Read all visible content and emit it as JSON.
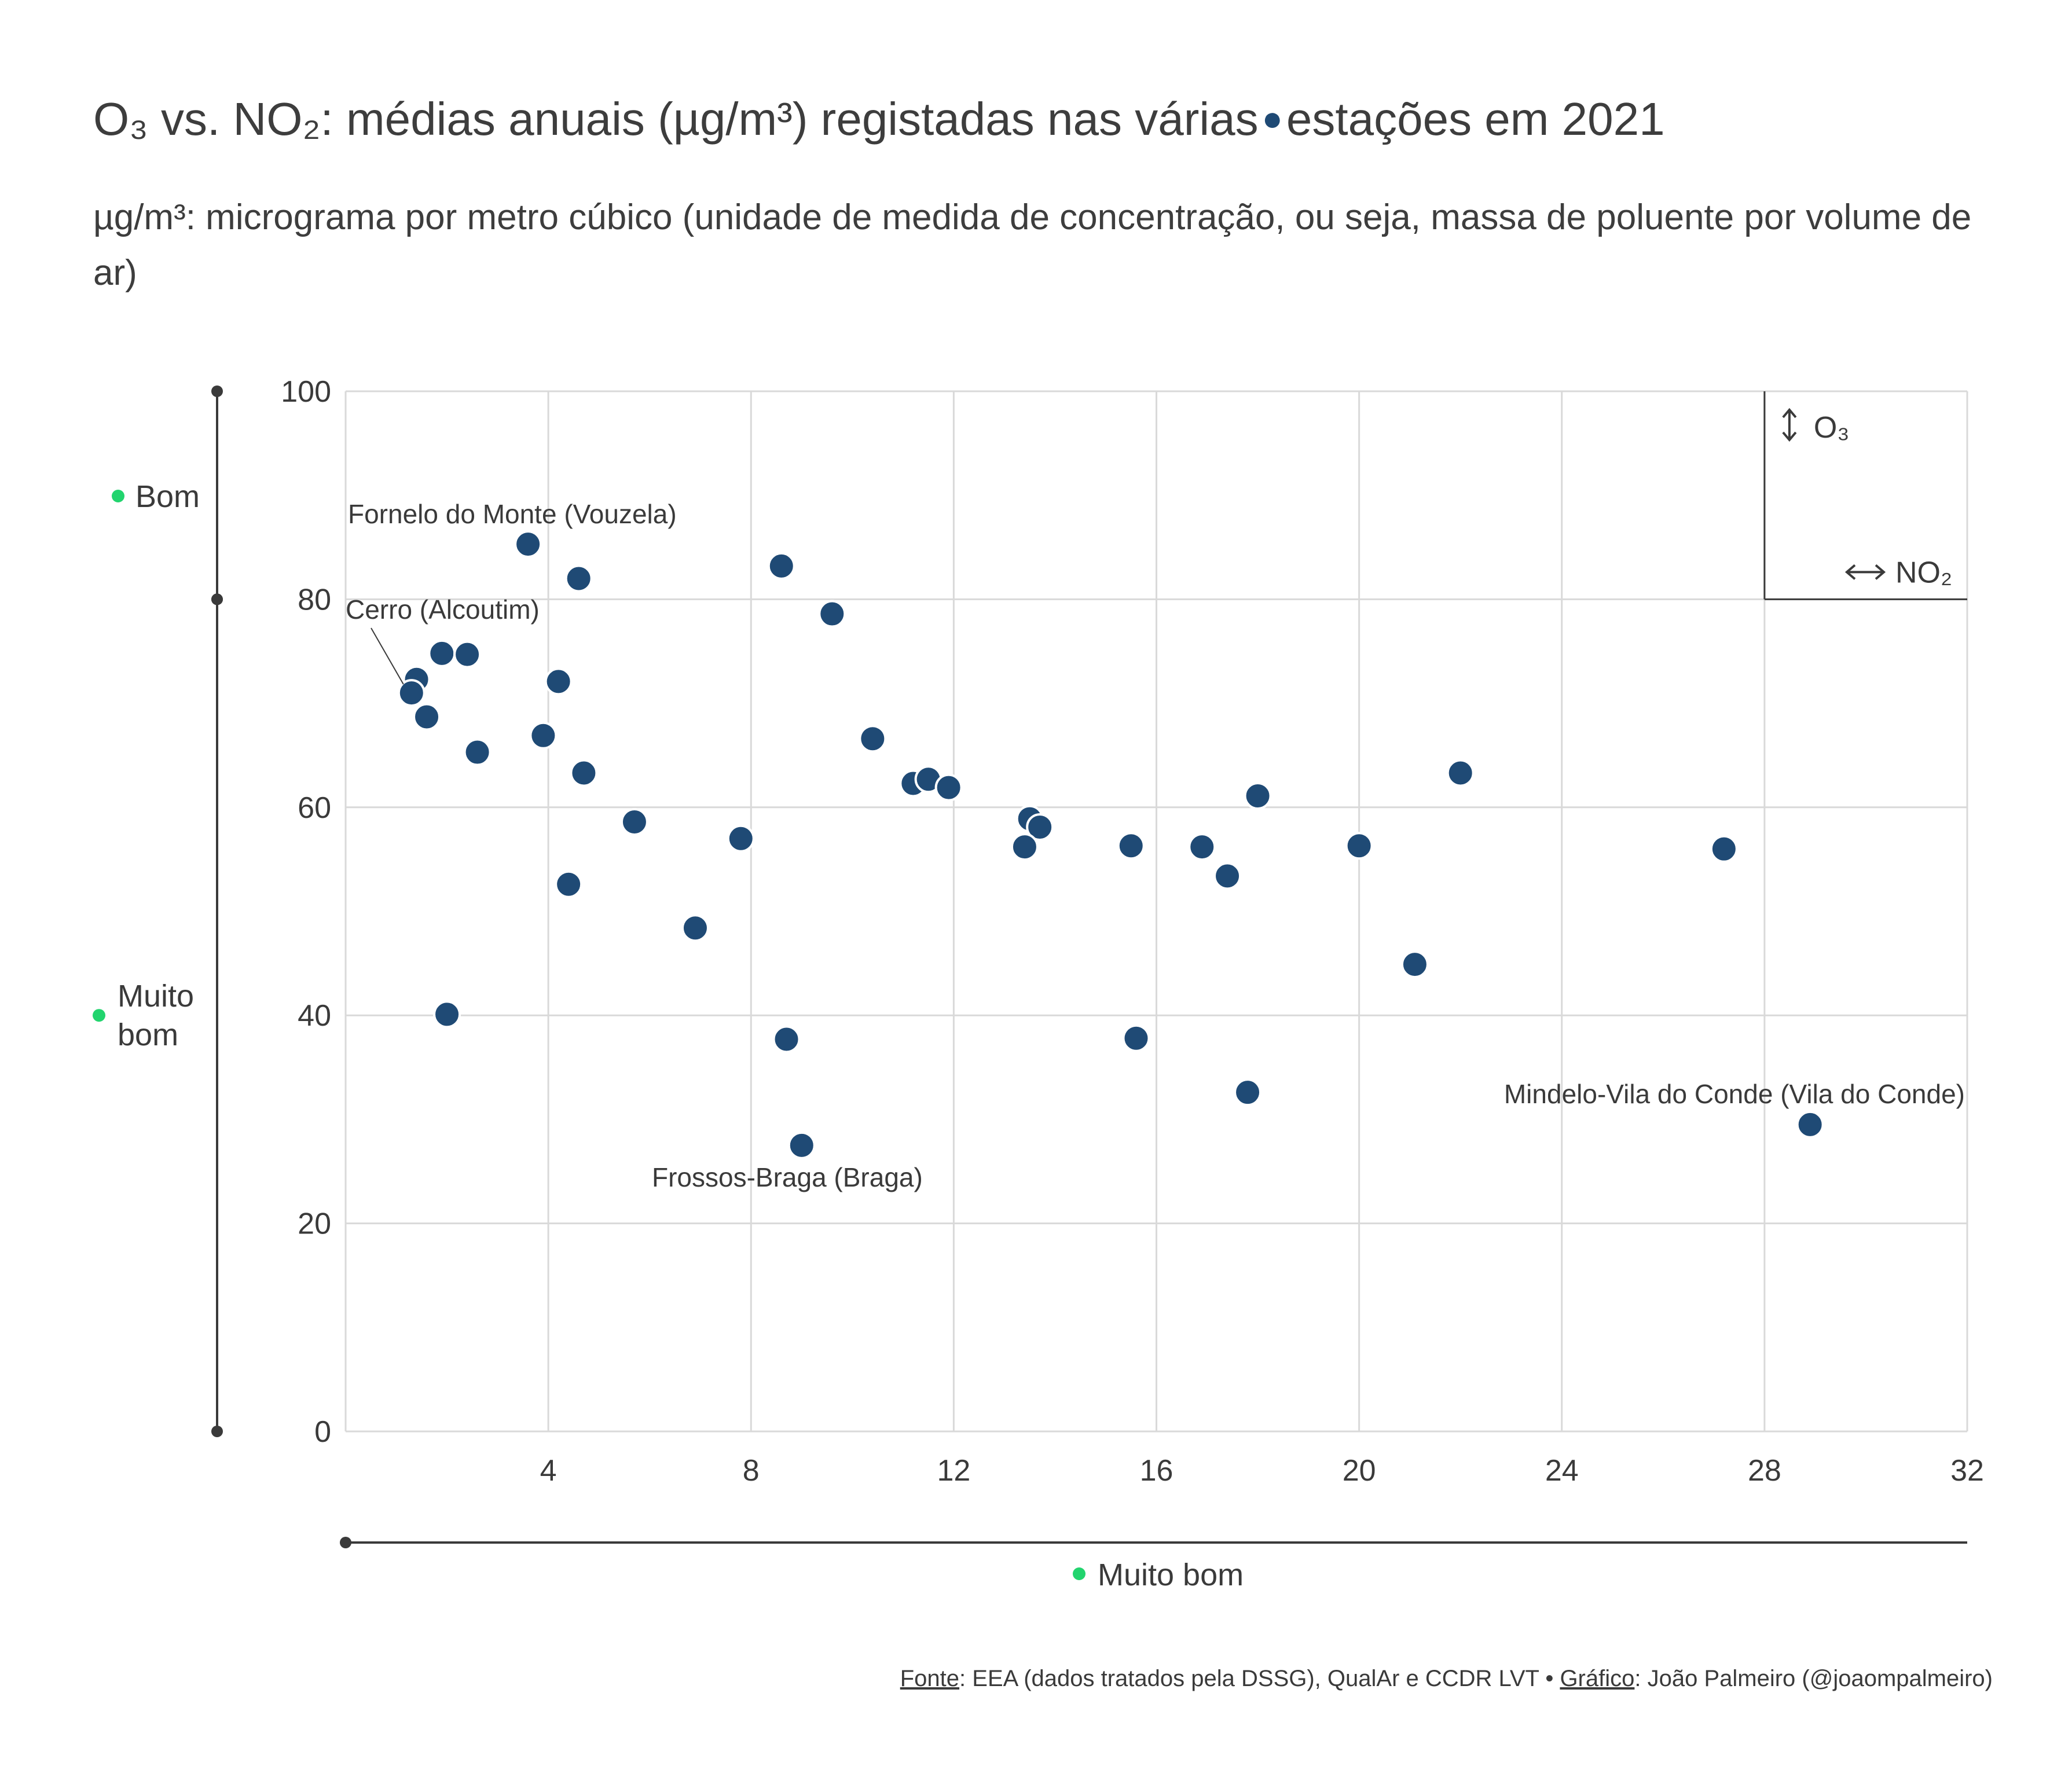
{
  "title": {
    "prefix": "O₃ vs. NO₂: médias anuais (µg/m³) registadas nas várias",
    "dot": "●",
    "suffix": "estações em 2021"
  },
  "subtitle": "µg/m³: micrograma por metro cúbico (unidade de medida de concentração, ou seja, massa de poluente por volume de ar)",
  "footer": {
    "source_label": "Fonte",
    "source_text": ": EEA (dados tratados pela DSSG), QualAr e CCDR LVT • ",
    "chart_label": "Gráfico",
    "chart_text": ": João Palmeiro (@joaompalmeiro)"
  },
  "colors": {
    "point": "#1f4a75",
    "grid": "#d9d9d9",
    "axis_text": "#3a3a3a",
    "band_dot": "#22d46e"
  },
  "chart_data": {
    "type": "scatter",
    "xlim": [
      0,
      32
    ],
    "ylim": [
      0,
      100
    ],
    "x_ticks": [
      4,
      8,
      12,
      16,
      20,
      24,
      28,
      32
    ],
    "y_ticks": [
      0,
      20,
      40,
      60,
      80,
      100
    ],
    "grid": true,
    "points": [
      {
        "x": 3.6,
        "y": 85.3
      },
      {
        "x": 4.6,
        "y": 82.0
      },
      {
        "x": 8.6,
        "y": 83.2
      },
      {
        "x": 9.6,
        "y": 78.6
      },
      {
        "x": 1.4,
        "y": 72.3
      },
      {
        "x": 1.3,
        "y": 71.0
      },
      {
        "x": 1.9,
        "y": 74.8
      },
      {
        "x": 2.4,
        "y": 74.7
      },
      {
        "x": 1.6,
        "y": 68.7
      },
      {
        "x": 4.2,
        "y": 72.1
      },
      {
        "x": 3.9,
        "y": 66.9
      },
      {
        "x": 2.6,
        "y": 65.3
      },
      {
        "x": 4.7,
        "y": 63.3
      },
      {
        "x": 10.4,
        "y": 66.6
      },
      {
        "x": 11.2,
        "y": 62.3
      },
      {
        "x": 11.5,
        "y": 62.7
      },
      {
        "x": 11.9,
        "y": 61.9
      },
      {
        "x": 5.7,
        "y": 58.6
      },
      {
        "x": 7.8,
        "y": 57.0
      },
      {
        "x": 4.4,
        "y": 52.6
      },
      {
        "x": 6.9,
        "y": 48.4
      },
      {
        "x": 2.0,
        "y": 40.1
      },
      {
        "x": 8.7,
        "y": 37.7
      },
      {
        "x": 9.0,
        "y": 27.5
      },
      {
        "x": 13.5,
        "y": 58.9
      },
      {
        "x": 13.7,
        "y": 58.1
      },
      {
        "x": 13.4,
        "y": 56.2
      },
      {
        "x": 15.5,
        "y": 56.3
      },
      {
        "x": 16.9,
        "y": 56.2
      },
      {
        "x": 17.4,
        "y": 53.4
      },
      {
        "x": 18.0,
        "y": 61.1
      },
      {
        "x": 15.6,
        "y": 37.8
      },
      {
        "x": 17.8,
        "y": 32.6
      },
      {
        "x": 20.0,
        "y": 56.3
      },
      {
        "x": 21.1,
        "y": 44.9
      },
      {
        "x": 22.0,
        "y": 63.3
      },
      {
        "x": 27.2,
        "y": 56.0
      },
      {
        "x": 28.9,
        "y": 29.5
      }
    ],
    "annotations": [
      {
        "text": "Fornelo do Monte (Vouzela)",
        "x": 3.6,
        "y": 85.3
      },
      {
        "text": "Cerro (Alcoutim)",
        "x": 1.3,
        "y": 71.0
      },
      {
        "text": "Frossos-Braga (Braga)",
        "x": 9.0,
        "y": 27.5
      },
      {
        "text": "Mindelo-Vila do Conde (Vila do Conde)",
        "x": 28.9,
        "y": 29.5
      }
    ],
    "legend_box": {
      "o3": "O₃",
      "no2": "NO₂",
      "x_from": 28,
      "y_from": 80
    },
    "o3_bands": [
      {
        "label": "Bom",
        "y_from": 80,
        "y_to": 100
      },
      {
        "label": "Muito bom",
        "y_from": 0,
        "y_to": 80
      }
    ],
    "no2_bands": [
      {
        "label": "Muito bom",
        "x_from": 0,
        "x_to": 32
      }
    ]
  }
}
